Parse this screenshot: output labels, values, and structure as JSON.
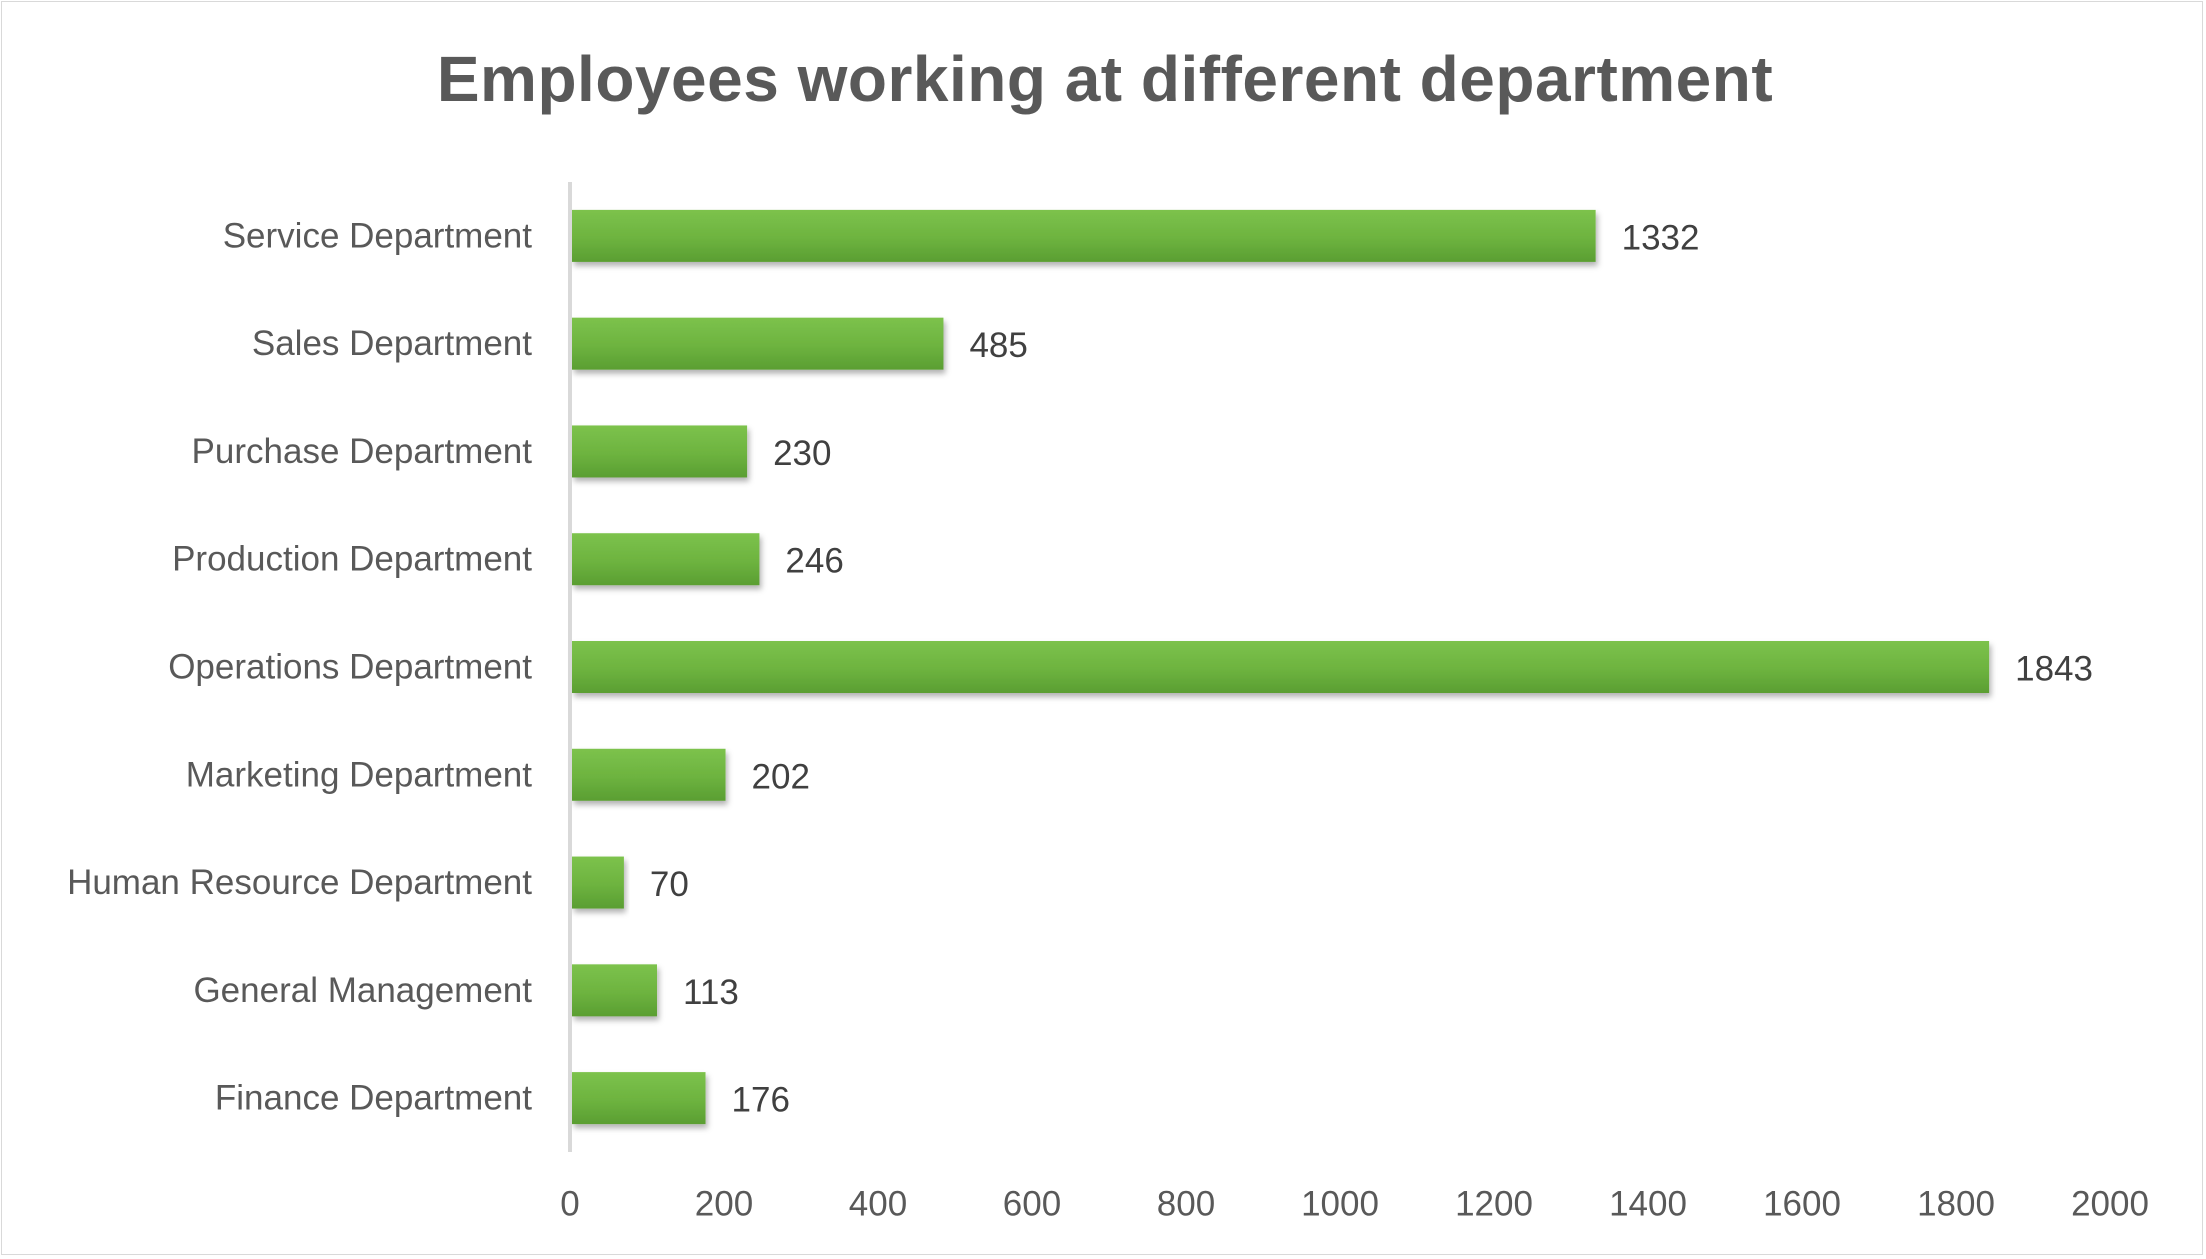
{
  "chart_data": {
    "type": "bar",
    "orientation": "horizontal",
    "title": "Employees working at different department",
    "xlabel": "",
    "ylabel": "",
    "categories": [
      "Finance Department",
      "General Management",
      "Human Resource Department",
      "Marketing Department",
      "Operations Department",
      "Production Department",
      "Purchase Department",
      "Sales Department",
      "Service Department"
    ],
    "values": [
      176,
      113,
      70,
      202,
      1843,
      246,
      230,
      485,
      1332
    ],
    "xlim": [
      0,
      2000
    ],
    "xticks": [
      0,
      200,
      400,
      600,
      800,
      1000,
      1200,
      1400,
      1600,
      1800,
      2000
    ],
    "grid": false,
    "legend": "none",
    "data_labels": true,
    "bar_color": "#6db33f",
    "bar_color_light": "#7cc24c",
    "bar_color_dark": "#5a9e32"
  }
}
